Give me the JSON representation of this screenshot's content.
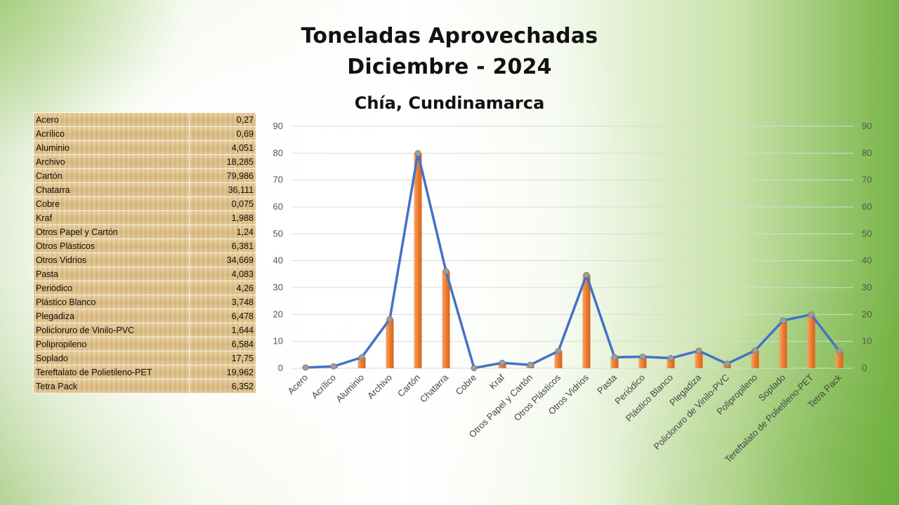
{
  "title": {
    "line1": "Toneladas Aprovechadas",
    "line2": "Diciembre - 2024",
    "subtitle": "Chía, Cundinamarca"
  },
  "table": {
    "rows": [
      {
        "label": "Acero",
        "value": "0,27"
      },
      {
        "label": "Acrílico",
        "value": "0,69"
      },
      {
        "label": "Aluminio",
        "value": "4,051"
      },
      {
        "label": "Archivo",
        "value": "18,285"
      },
      {
        "label": "Cartón",
        "value": "79,986"
      },
      {
        "label": "Chatarra",
        "value": "36,111"
      },
      {
        "label": "Cobre",
        "value": "0,075"
      },
      {
        "label": "Kraf",
        "value": "1,988"
      },
      {
        "label": "Otros Papel y Cartón",
        "value": "1,24"
      },
      {
        "label": "Otros Plásticos",
        "value": "6,381"
      },
      {
        "label": "Otros Vidrios",
        "value": "34,669"
      },
      {
        "label": "Pasta",
        "value": "4,083"
      },
      {
        "label": "Periódico",
        "value": "4,26"
      },
      {
        "label": "Plástico Blanco",
        "value": "3,748"
      },
      {
        "label": "Plegadiza",
        "value": "6,478"
      },
      {
        "label": "Policloruro de Vinilo-PVC",
        "value": "1,644"
      },
      {
        "label": "Polipropileno",
        "value": "6,584"
      },
      {
        "label": "Soplado",
        "value": "17,75"
      },
      {
        "label": "Tereftalato de Polietileno-PET",
        "value": "19,962"
      },
      {
        "label": "Tetra Pack",
        "value": "6,352"
      }
    ]
  },
  "chart_data": {
    "type": "bar",
    "title": "",
    "xlabel": "",
    "ylabel": "",
    "ylim": [
      0,
      90
    ],
    "yticks": [
      0,
      10,
      20,
      30,
      40,
      50,
      60,
      70,
      80,
      90
    ],
    "secondary_ylim": [
      0,
      90
    ],
    "grid": true,
    "legend": "none",
    "categories": [
      "Acero",
      "Acrílico",
      "Aluminio",
      "Archivo",
      "Cartón",
      "Chatarra",
      "Cobre",
      "Kraf",
      "Otros Papel y Cartón",
      "Otros Plásticos",
      "Otros Vidrios",
      "Pasta",
      "Periódico",
      "Plástico Blanco",
      "Plegadiza",
      "Policloruro de Vinilo-PVC",
      "Polipropileno",
      "Soplado",
      "Tereftalato de Polietileno-PET",
      "Tetra Pack"
    ],
    "series": [
      {
        "type": "bar",
        "color": "#ed7d31",
        "values": [
          0.27,
          0.69,
          4.051,
          18.285,
          79.986,
          36.111,
          0.075,
          1.988,
          1.24,
          6.381,
          34.669,
          4.083,
          4.26,
          3.748,
          6.478,
          1.644,
          6.584,
          17.75,
          19.962,
          6.352
        ]
      },
      {
        "type": "line",
        "color": "#4472c4",
        "marker_color": "#9e9e9e",
        "values": [
          0.27,
          0.69,
          4.051,
          18.285,
          79.986,
          36.111,
          0.075,
          1.988,
          1.24,
          6.381,
          34.669,
          4.083,
          4.26,
          3.748,
          6.478,
          1.644,
          6.584,
          17.75,
          19.962,
          6.352
        ]
      }
    ]
  }
}
